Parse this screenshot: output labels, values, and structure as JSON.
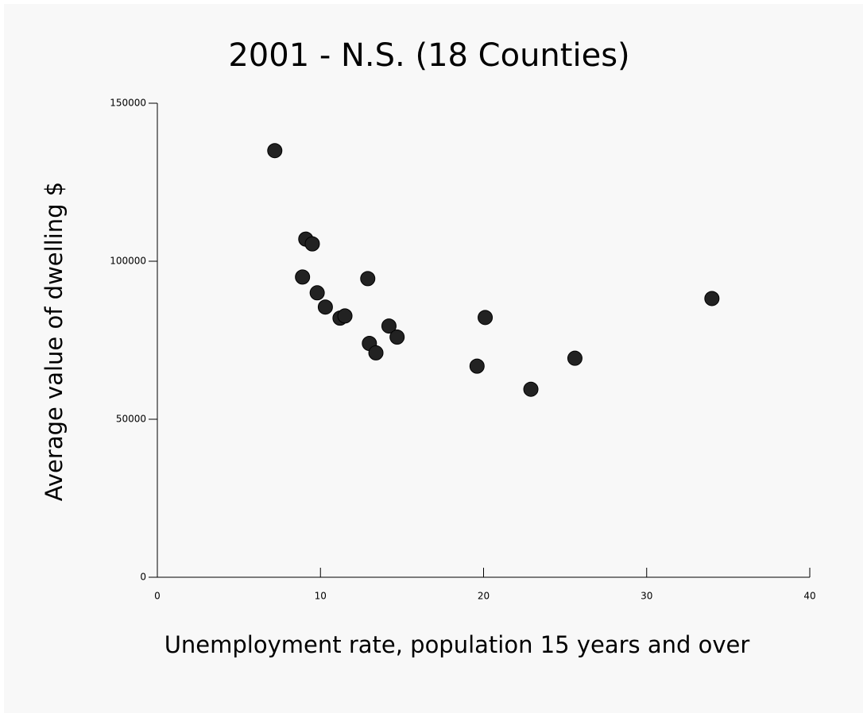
{
  "chart_data": {
    "type": "scatter",
    "title": "2001 - N.S. (18 Counties)",
    "x_label": "Unemployment rate, population 15 years and over",
    "y_label": "Average value of dwelling $",
    "x": [
      7.2,
      9.1,
      9.5,
      8.9,
      9.8,
      10.3,
      11.2,
      11.5,
      12.9,
      13.0,
      13.4,
      14.2,
      14.7,
      19.6,
      20.1,
      22.9,
      25.6,
      34.0
    ],
    "values": [
      135000,
      107000,
      105500,
      95000,
      90000,
      85500,
      82000,
      82700,
      94500,
      74000,
      71000,
      79500,
      76000,
      66800,
      82200,
      59500,
      69300,
      88200
    ],
    "color": "#222222",
    "xlim": [
      0,
      40
    ],
    "xticks": [
      0,
      10,
      20,
      30,
      40
    ],
    "ylim": [
      0,
      150000
    ],
    "yticks": [
      0,
      50000,
      100000,
      150000
    ]
  }
}
